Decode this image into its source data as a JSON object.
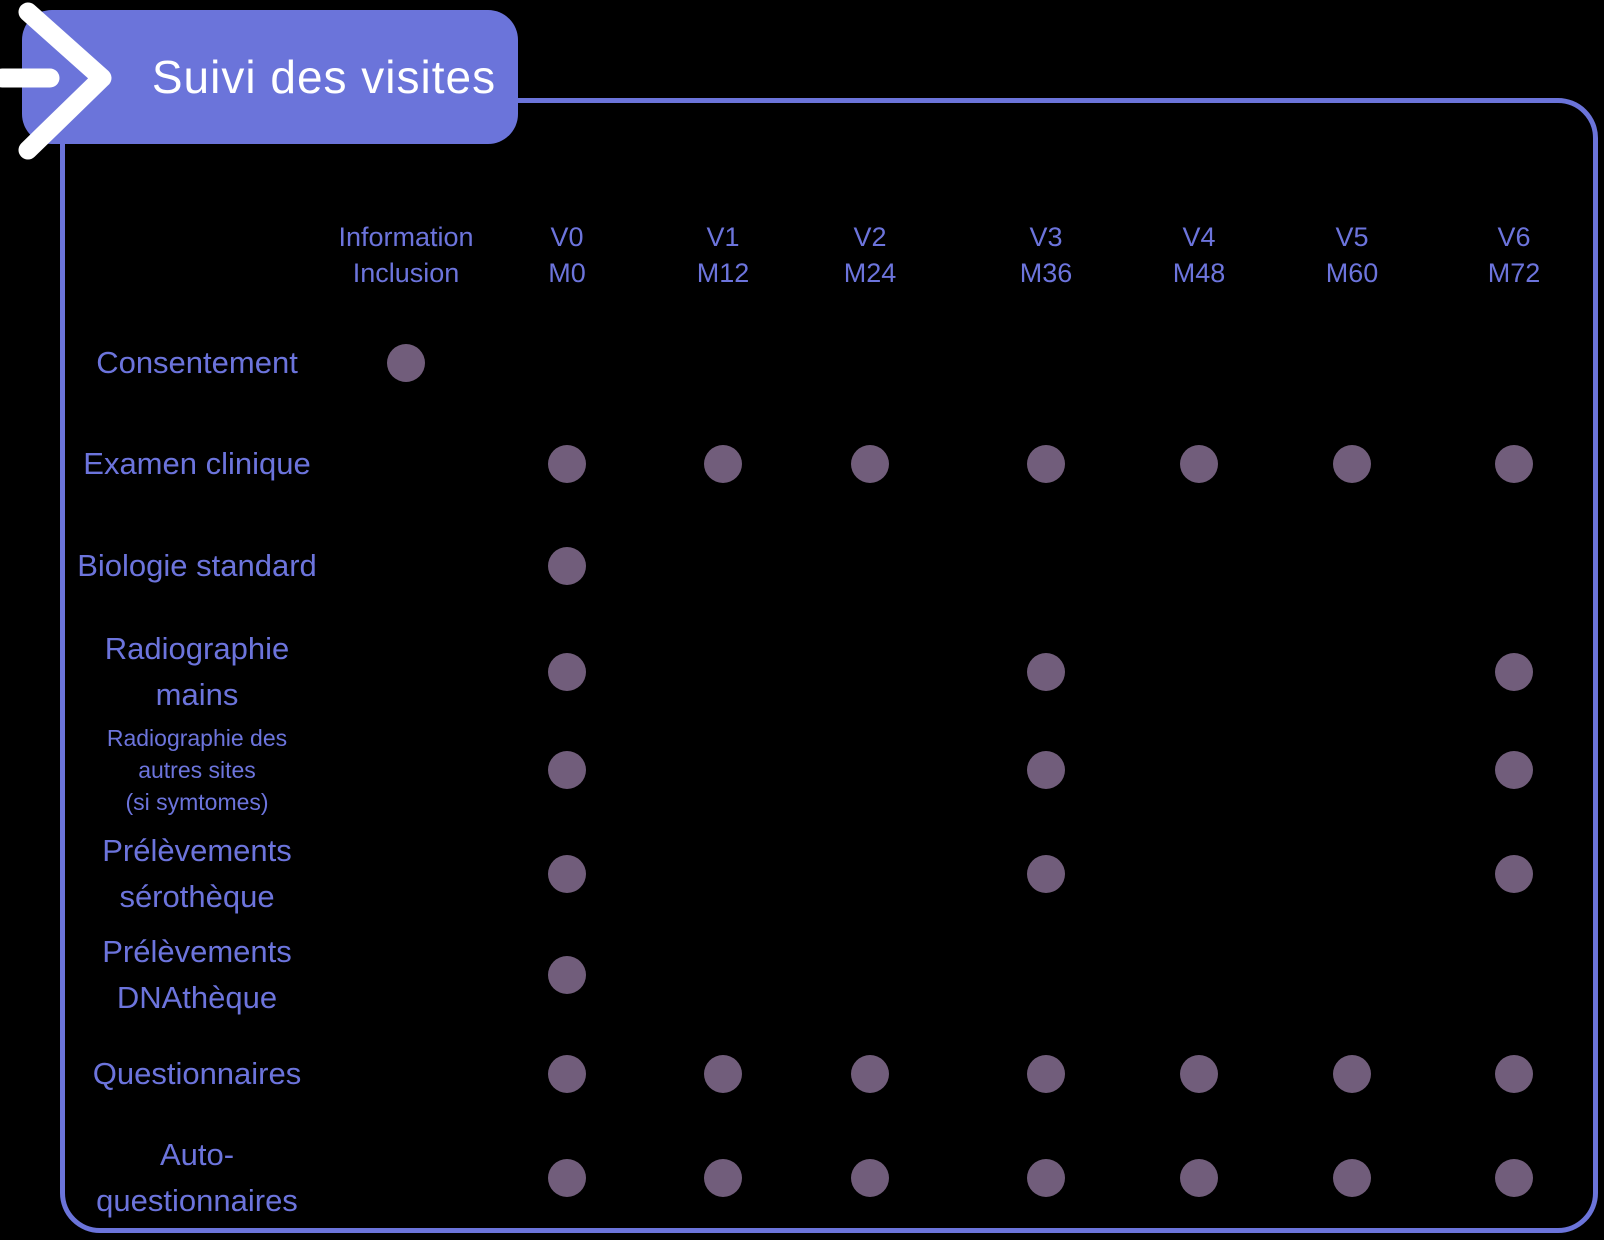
{
  "header": {
    "title": "Suivi des visites"
  },
  "table": {
    "columns": [
      {
        "id": "information-inclusion",
        "label": "Information\nInclusion"
      },
      {
        "id": "v0",
        "label": "V0\nM0"
      },
      {
        "id": "v1",
        "label": "V1\nM12"
      },
      {
        "id": "v2",
        "label": "V2\nM24"
      },
      {
        "id": "v3",
        "label": "V3\nM36"
      },
      {
        "id": "v4",
        "label": "V4\nM48"
      },
      {
        "id": "v5",
        "label": "V5\nM60"
      },
      {
        "id": "v6",
        "label": "V6\nM72"
      }
    ],
    "rows": [
      {
        "id": "consentement",
        "label": "Consentement",
        "dots": [
          1,
          0,
          0,
          0,
          0,
          0,
          0,
          0
        ]
      },
      {
        "id": "examen-clinique",
        "label": "Examen clinique",
        "dots": [
          0,
          1,
          1,
          1,
          1,
          1,
          1,
          1
        ]
      },
      {
        "id": "biologie-standard",
        "label": "Biologie standard",
        "dots": [
          0,
          1,
          0,
          0,
          0,
          0,
          0,
          0
        ]
      },
      {
        "id": "radiographie-mains",
        "label": "Radiographie\nmains",
        "dots": [
          0,
          1,
          0,
          0,
          1,
          0,
          0,
          1
        ]
      },
      {
        "id": "radiographie-autres-sites",
        "label": "Radiographie des\nautres sites\n(si symtomes)",
        "dots": [
          0,
          1,
          0,
          0,
          1,
          0,
          0,
          1
        ]
      },
      {
        "id": "prelevements-serotheque",
        "label": "Prélèvements\nsérothèque",
        "dots": [
          0,
          1,
          0,
          0,
          1,
          0,
          0,
          1
        ]
      },
      {
        "id": "prelevements-dnatheque",
        "label": "Prélèvements\nDNAthèque",
        "dots": [
          0,
          1,
          0,
          0,
          0,
          0,
          0,
          0
        ]
      },
      {
        "id": "questionnaires",
        "label": "Questionnaires",
        "dots": [
          0,
          1,
          1,
          1,
          1,
          1,
          1,
          1
        ]
      },
      {
        "id": "auto-questionnaires",
        "label": "Auto-\nquestionnaires",
        "dots": [
          0,
          1,
          1,
          1,
          1,
          1,
          1,
          1
        ]
      }
    ]
  },
  "colors": {
    "accent_blue": "#6B74DA",
    "text_blue": "#6C74DC",
    "dot_mauve": "#715D7B",
    "background": "#000000",
    "title_text": "#FFFFFF"
  },
  "icons": {
    "arrow": "right-arrow"
  }
}
